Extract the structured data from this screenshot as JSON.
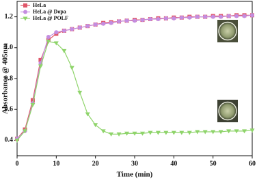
{
  "chart_data": {
    "type": "line",
    "xlabel": "Time (min)",
    "ylabel": "Absorbance @ 405nm",
    "xlim": [
      0,
      60
    ],
    "ylim": [
      0.3,
      1.3
    ],
    "xticks": [
      0,
      10,
      20,
      30,
      40,
      50,
      60
    ],
    "yticks": [
      0.4,
      0.6,
      0.8,
      {
        "value": 1,
        "label": "1.0"
      },
      1.2
    ],
    "legend": "upper left",
    "x": [
      0,
      2,
      4,
      6,
      8,
      10,
      12,
      14,
      16,
      18,
      20,
      22,
      24,
      26,
      28,
      30,
      32,
      34,
      36,
      38,
      40,
      42,
      44,
      46,
      48,
      50,
      52,
      54,
      56,
      58,
      60
    ],
    "series": [
      {
        "name": "HeLa",
        "color": "#e0576a",
        "marker": "square",
        "values": [
          0.41,
          0.47,
          0.66,
          0.92,
          1.05,
          1.09,
          1.11,
          1.12,
          1.13,
          1.14,
          1.15,
          1.16,
          1.165,
          1.17,
          1.175,
          1.18,
          1.18,
          1.185,
          1.19,
          1.19,
          1.195,
          1.195,
          1.2,
          1.2,
          1.2,
          1.205,
          1.205,
          1.205,
          1.21,
          1.21,
          1.21
        ]
      },
      {
        "name": "HeLa @ Dopa",
        "color": "#c48de0",
        "marker": "circle",
        "values": [
          0.41,
          0.46,
          0.64,
          0.9,
          1.07,
          1.1,
          1.11,
          1.12,
          1.13,
          1.14,
          1.15,
          1.155,
          1.16,
          1.17,
          1.175,
          1.175,
          1.18,
          1.185,
          1.185,
          1.19,
          1.19,
          1.195,
          1.195,
          1.2,
          1.2,
          1.2,
          1.2,
          1.205,
          1.205,
          1.205,
          1.21
        ]
      },
      {
        "name": "HeLa @ POLF",
        "color": "#8fd46b",
        "marker": "triangle",
        "values": [
          0.4,
          0.46,
          0.63,
          0.88,
          1.04,
          1.03,
          0.98,
          0.87,
          0.71,
          0.57,
          0.5,
          0.46,
          0.44,
          0.44,
          0.445,
          0.445,
          0.445,
          0.45,
          0.45,
          0.45,
          0.45,
          0.45,
          0.45,
          0.455,
          0.455,
          0.455,
          0.455,
          0.46,
          0.46,
          0.46,
          0.465
        ]
      }
    ]
  }
}
